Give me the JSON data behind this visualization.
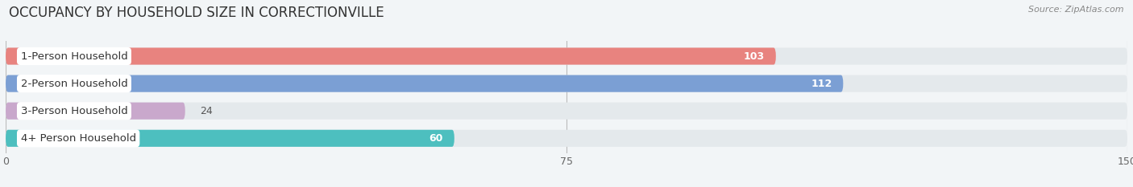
{
  "title": "OCCUPANCY BY HOUSEHOLD SIZE IN CORRECTIONVILLE",
  "source": "Source: ZipAtlas.com",
  "categories": [
    "1-Person Household",
    "2-Person Household",
    "3-Person Household",
    "4+ Person Household"
  ],
  "values": [
    103,
    112,
    24,
    60
  ],
  "bar_colors": [
    "#E8837F",
    "#7B9FD4",
    "#C9A8CC",
    "#4DBFBF"
  ],
  "background_color": "#f2f5f7",
  "bar_track_color": "#e4e9ec",
  "xlim": [
    0,
    150
  ],
  "xticks": [
    0,
    75,
    150
  ],
  "label_fontsize": 9.5,
  "value_fontsize": 9,
  "title_fontsize": 12,
  "bar_height": 0.62
}
